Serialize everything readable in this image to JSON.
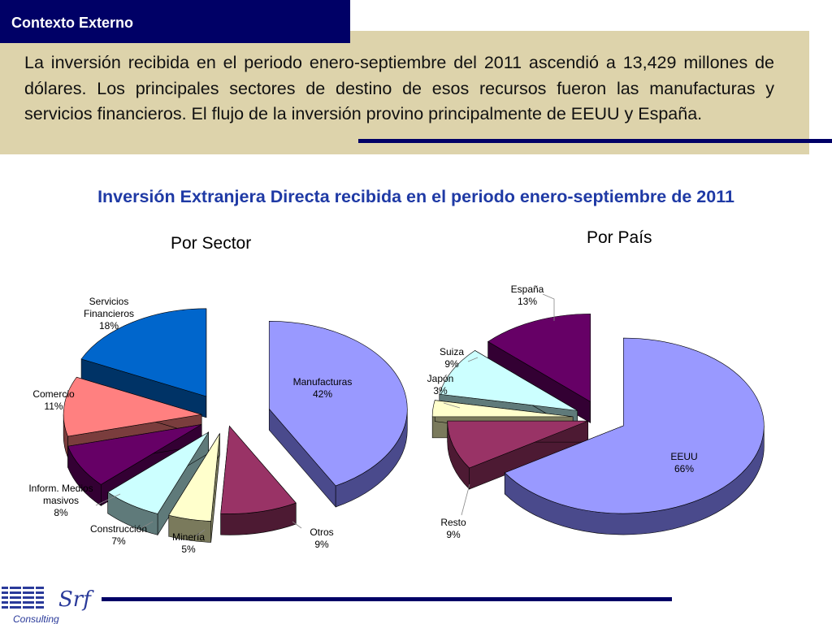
{
  "header": {
    "title": "Contexto Externo"
  },
  "intro": {
    "text": "La inversión recibida en el periodo enero-septiembre del 2011 ascendió a 13,429 millones de dólares. Los principales sectores de destino de esos recursos fueron las manufacturas y servicios financieros. El flujo de la inversión provino principalmente de EEUU y España."
  },
  "main_title": "Inversión Extranjera Directa recibida en el periodo enero-septiembre de 2011",
  "logo": {
    "text": "Srf",
    "subtext": "Consulting"
  },
  "chart_data": [
    {
      "type": "pie",
      "title": "Por Sector",
      "slices": [
        {
          "label": "Manufacturas",
          "value": 42,
          "display": "42%",
          "color": "#9999ff",
          "side_color": "#4a4a8c"
        },
        {
          "label": "Otros",
          "value": 9,
          "display": "9%",
          "color": "#993366",
          "side_color": "#4d1a33"
        },
        {
          "label": "Minería",
          "value": 5,
          "display": "5%",
          "color": "#ffffcc",
          "side_color": "#7a7a5c"
        },
        {
          "label": "Construcción",
          "value": 7,
          "display": "7%",
          "color": "#ccffff",
          "side_color": "#5f7a7a"
        },
        {
          "label": "Inform. Medios masivos",
          "value": 8,
          "display": "8%",
          "color": "#660066",
          "side_color": "#330033"
        },
        {
          "label": "Comercio",
          "value": 11,
          "display": "11%",
          "color": "#ff8080",
          "side_color": "#7a3d3d"
        },
        {
          "label": "Servicios Financieros",
          "value": 18,
          "display": "18%",
          "color": "#0066cc",
          "side_color": "#003366"
        }
      ]
    },
    {
      "type": "pie",
      "title": "Por País",
      "slices": [
        {
          "label": "EEUU",
          "value": 66,
          "display": "66%",
          "color": "#9999ff",
          "side_color": "#4a4a8c"
        },
        {
          "label": "Resto",
          "value": 9,
          "display": "9%",
          "color": "#993366",
          "side_color": "#4d1a33"
        },
        {
          "label": "Japón",
          "value": 3,
          "display": "3%",
          "color": "#ffffcc",
          "side_color": "#7a7a5c"
        },
        {
          "label": "Suiza",
          "value": 9,
          "display": "9%",
          "color": "#ccffff",
          "side_color": "#5f7a7a"
        },
        {
          "label": "España",
          "value": 13,
          "display": "13%",
          "color": "#660066",
          "side_color": "#330033"
        }
      ]
    }
  ]
}
